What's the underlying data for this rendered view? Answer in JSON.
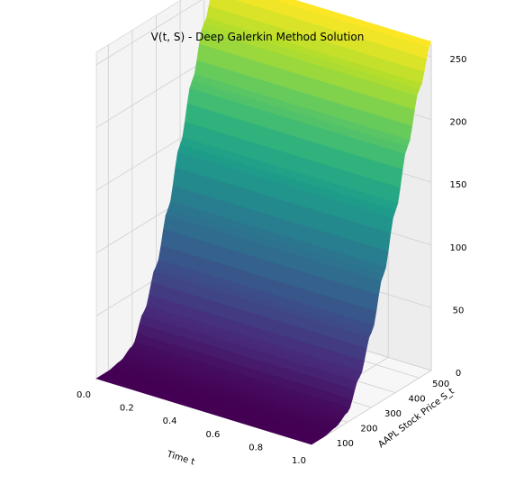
{
  "chart_data": {
    "type": "surface",
    "title": "V(t, S) - Deep Galerkin Method Solution",
    "xlabel": "Time t",
    "ylabel": "AAPL Stock Price S_t",
    "zlabel": "",
    "xlim": [
      0.0,
      1.0
    ],
    "ylim": [
      50,
      550
    ],
    "zlim": [
      0,
      260
    ],
    "x_ticks": [
      "0.0",
      "0.2",
      "0.4",
      "0.6",
      "0.8",
      "1.0"
    ],
    "y_ticks": [
      "100",
      "200",
      "300",
      "400",
      "500"
    ],
    "z_ticks": [
      "0",
      "50",
      "100",
      "150",
      "200",
      "250"
    ],
    "grid": true,
    "colormap": "viridis",
    "surface": {
      "description": "option value, roughly constant in t, increasing in S",
      "S": [
        50,
        100,
        150,
        200,
        250,
        300,
        350,
        400,
        450,
        500,
        550
      ],
      "V": [
        0,
        0,
        2,
        8,
        30,
        60,
        100,
        145,
        190,
        230,
        262
      ]
    }
  }
}
